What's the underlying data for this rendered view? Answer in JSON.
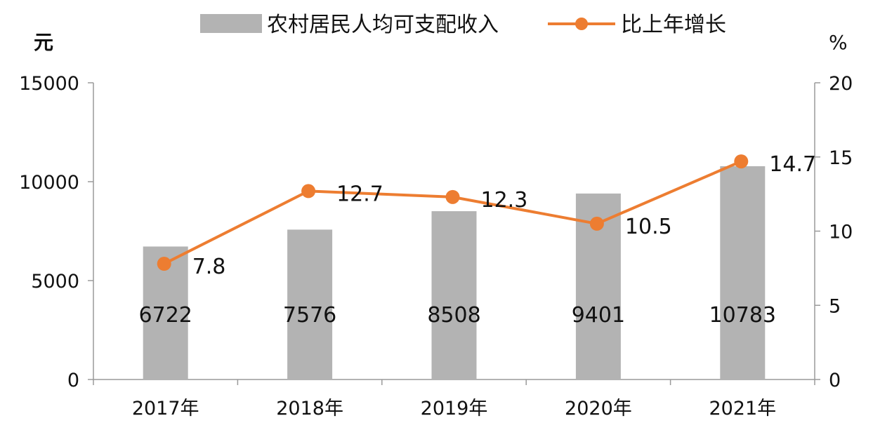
{
  "chart_data": {
    "type": "bar+line",
    "categories": [
      "2017年",
      "2018年",
      "2019年",
      "2020年",
      "2021年"
    ],
    "series": [
      {
        "name": "农村居民人均可支配收入",
        "type": "bar",
        "axis": "left",
        "values": [
          6722,
          7576,
          8508,
          9401,
          10783
        ],
        "color": "#b3b3b3"
      },
      {
        "name": "比上年增长",
        "type": "line",
        "axis": "right",
        "values": [
          7.8,
          12.7,
          12.3,
          10.5,
          14.7
        ],
        "color": "#ed7d31"
      }
    ],
    "left_axis": {
      "unit": "元",
      "range": [
        0,
        15000
      ],
      "ticks": [
        0,
        5000,
        10000,
        15000
      ]
    },
    "right_axis": {
      "unit": "%",
      "range": [
        0,
        20
      ],
      "ticks": [
        0,
        5,
        10,
        15,
        20
      ]
    },
    "legend_position": "top",
    "grid": false
  }
}
